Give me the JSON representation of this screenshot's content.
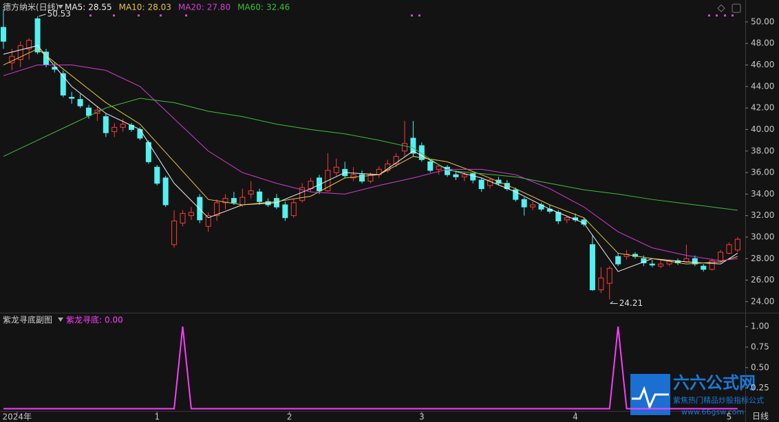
{
  "chart_data": [
    {
      "type": "candlestick",
      "title": "德方纳米(日线)",
      "candles": [
        [
          49.5,
          51.2,
          47.5,
          48.2
        ],
        [
          46.2,
          47.5,
          45.5,
          46.8
        ],
        [
          46.5,
          48.2,
          45.8,
          47.8
        ],
        [
          47.5,
          48.5,
          46.5,
          48.3
        ],
        [
          50.3,
          50.53,
          47,
          47.2
        ],
        [
          47.2,
          47.5,
          45.8,
          46
        ],
        [
          45.8,
          46.2,
          45.3,
          45.6
        ],
        [
          45.2,
          45.5,
          43,
          43.2
        ],
        [
          43,
          43.5,
          42.4,
          42.9
        ],
        [
          42.8,
          43.3,
          42,
          42.2
        ],
        [
          42,
          42.3,
          41,
          41.3
        ],
        [
          41.5,
          42.2,
          40.8,
          41.8
        ],
        [
          41.2,
          41.5,
          39.3,
          39.7
        ],
        [
          39.8,
          40.6,
          39.3,
          40.2
        ],
        [
          40.2,
          41,
          39.8,
          40.5
        ],
        [
          40.4,
          40.6,
          39.8,
          40
        ],
        [
          40,
          40.2,
          39,
          39.2
        ],
        [
          38.8,
          39,
          36.8,
          37
        ],
        [
          36.5,
          36.7,
          34.8,
          35
        ],
        [
          35.5,
          35.7,
          32.8,
          33
        ],
        [
          29.3,
          32.5,
          29,
          31.5
        ],
        [
          31.3,
          32.5,
          31,
          32.2
        ],
        [
          32,
          32.8,
          31.6,
          32.3
        ],
        [
          33.7,
          34,
          31.3,
          31.6
        ],
        [
          31,
          32.3,
          30.5,
          32
        ],
        [
          32,
          33.5,
          31.5,
          33.2
        ],
        [
          33.2,
          34,
          32.6,
          33.6
        ],
        [
          33.6,
          34.2,
          33,
          33.2
        ],
        [
          33,
          34.5,
          32.8,
          33.7
        ],
        [
          34,
          35.2,
          33.6,
          34.3
        ],
        [
          34.2,
          34.5,
          33,
          33.3
        ],
        [
          33.3,
          33.6,
          32.8,
          33
        ],
        [
          33.6,
          34,
          32.6,
          32.8
        ],
        [
          33,
          33.3,
          31.5,
          31.8
        ],
        [
          32,
          33.5,
          31.8,
          33.2
        ],
        [
          33.4,
          35,
          33.2,
          34.6
        ],
        [
          34.5,
          35.5,
          34.2,
          35.2
        ],
        [
          35.5,
          35.8,
          34,
          34.3
        ],
        [
          34.3,
          37.8,
          34.2,
          36.2
        ],
        [
          36,
          37.3,
          35.7,
          36.5
        ],
        [
          36.3,
          37,
          35.5,
          35.7
        ],
        [
          35.5,
          36.5,
          35.2,
          35.8
        ],
        [
          35.8,
          36.2,
          35,
          35.2
        ],
        [
          35.2,
          36,
          35,
          35.8
        ],
        [
          35.8,
          36.6,
          35.5,
          36.3
        ],
        [
          36.2,
          37.2,
          36,
          36.8
        ],
        [
          36.8,
          37.8,
          36.5,
          37.5
        ],
        [
          38,
          40.8,
          37.5,
          38.7
        ],
        [
          39.2,
          40.8,
          37.5,
          37.8
        ],
        [
          38.5,
          38.8,
          37,
          37.2
        ],
        [
          37,
          37.2,
          36,
          36.2
        ],
        [
          36.3,
          36.8,
          35.8,
          36.6
        ],
        [
          36.5,
          36.7,
          35.6,
          35.8
        ],
        [
          35.8,
          36.2,
          35.3,
          35.6
        ],
        [
          35.6,
          36,
          35.2,
          35.8
        ],
        [
          35.9,
          36,
          35,
          35.3
        ],
        [
          35.3,
          35.5,
          34.2,
          34.5
        ],
        [
          34.8,
          35.5,
          34.5,
          35.3
        ],
        [
          35.3,
          35.6,
          34.8,
          35
        ],
        [
          35,
          35.3,
          34.3,
          34.5
        ],
        [
          34.4,
          34.6,
          33.3,
          33.5
        ],
        [
          33.5,
          33.7,
          32,
          32.8
        ],
        [
          32.8,
          33.3,
          32.5,
          33
        ],
        [
          33,
          33.2,
          32.4,
          32.6
        ],
        [
          32.6,
          33,
          32.2,
          32.4
        ],
        [
          32.3,
          32.5,
          31.2,
          31.5
        ],
        [
          31.6,
          32,
          31.3,
          31.8
        ],
        [
          31.8,
          32.2,
          31.4,
          31.6
        ],
        [
          31.6,
          31.8,
          31,
          31.2
        ],
        [
          29.3,
          30.2,
          25,
          25.1
        ],
        [
          25.1,
          27.2,
          24.8,
          26.2
        ],
        [
          25.7,
          27.3,
          24.21,
          27.1
        ],
        [
          28.2,
          28.5,
          27.3,
          27.5
        ],
        [
          28.2,
          28.8,
          27.9,
          28.4
        ],
        [
          28.4,
          28.6,
          28,
          28.2
        ],
        [
          28,
          28.3,
          27.3,
          27.6
        ],
        [
          27.5,
          27.9,
          27.2,
          27.4
        ],
        [
          27.3,
          27.8,
          27.1,
          27.5
        ],
        [
          27.5,
          27.9,
          27.3,
          27.8
        ],
        [
          27.8,
          28,
          27.4,
          27.6
        ],
        [
          27.7,
          29.3,
          27.6,
          28
        ],
        [
          28,
          28.3,
          27.3,
          27.5
        ],
        [
          27.3,
          27.5,
          26.8,
          27
        ],
        [
          27,
          28,
          26.9,
          27.8
        ],
        [
          27.8,
          28.8,
          27.6,
          28.6
        ],
        [
          28.5,
          29.5,
          28.4,
          29.3
        ],
        [
          28.8,
          30,
          28.6,
          29.8
        ]
      ],
      "up_color": "#ff3b3b",
      "down_color": "#54f0f0",
      "ma_x": [
        0,
        4,
        8,
        12,
        16,
        20,
        24,
        28,
        32,
        36,
        40,
        44,
        48,
        52,
        56,
        60,
        64,
        68,
        72,
        76,
        80,
        84,
        86
      ],
      "series": [
        {
          "name": "MA5:",
          "current": 28.55,
          "color": "#f0f0f0",
          "values": [
            47,
            47.8,
            44,
            41.5,
            40,
            35,
            31.8,
            33,
            33.2,
            34.5,
            36,
            35.8,
            38,
            36.3,
            35.5,
            34.2,
            32.6,
            31.3,
            26.8,
            28,
            27.7,
            27.5,
            28.5
          ]
        },
        {
          "name": "MA10:",
          "current": 28.03,
          "color": "#e8c84a",
          "values": [
            46,
            47.5,
            45,
            42.5,
            40.5,
            37,
            33.5,
            33,
            33.3,
            33.8,
            35.5,
            35.8,
            37.5,
            37,
            35.8,
            34.5,
            33,
            31.8,
            28.5,
            28,
            27.5,
            27.7,
            28.2
          ]
        },
        {
          "name": "MA20:",
          "current": 27.8,
          "current_label": "27.80",
          "color": "#d23fd2",
          "values": [
            45,
            46,
            46,
            45.5,
            44,
            41,
            38,
            36,
            35,
            34.2,
            34,
            34.8,
            35.5,
            36.3,
            36.3,
            35.8,
            34.5,
            32.8,
            30.5,
            29,
            28.3,
            27.8,
            28
          ]
        },
        {
          "name": "MA60:",
          "current": 32.46,
          "color": "#3fbf3f",
          "values": [
            37.5,
            39,
            40.5,
            42,
            42.9,
            42.5,
            41.7,
            41.2,
            40.5,
            40,
            39.6,
            39,
            38.3,
            36.2,
            35.9,
            35.6,
            35,
            34.4,
            34,
            33.5,
            33.1,
            32.7,
            32.5
          ]
        }
      ],
      "high_index": 4,
      "low_index": 71,
      "xlim": [
        -0.4,
        86.9
      ],
      "ylim": [
        22.97,
        52.04
      ],
      "yticks": [
        {
          "value": 24,
          "label": "24.00"
        },
        {
          "value": 26,
          "label": "26.00"
        },
        {
          "value": 28,
          "label": "28.00"
        },
        {
          "value": 30,
          "label": "30.00"
        },
        {
          "value": 32,
          "label": "32.00"
        },
        {
          "value": 34,
          "label": "34.00"
        },
        {
          "value": 36,
          "label": "36.00"
        },
        {
          "value": 38,
          "label": "38.00"
        },
        {
          "value": 40,
          "label": "40.00"
        },
        {
          "value": 42,
          "label": "42.00"
        },
        {
          "value": 44,
          "label": "44.00"
        },
        {
          "value": 46,
          "label": "46.00"
        },
        {
          "value": 48,
          "label": "48.00"
        },
        {
          "value": 50,
          "label": "50.00"
        }
      ],
      "xticks": [
        {
          "value": 1.6,
          "label": "2024年"
        },
        {
          "value": 18,
          "label": "1"
        },
        {
          "value": 33.5,
          "label": "2"
        },
        {
          "value": 49,
          "label": "3"
        },
        {
          "value": 67,
          "label": "4"
        },
        {
          "value": 85,
          "label": "5"
        }
      ],
      "period": "日线"
    },
    {
      "type": "line",
      "title": "紫龙寻底副图",
      "series": [
        {
          "name": "紫龙寻底:",
          "current": 0,
          "current_label": "0.00",
          "color": "#ff3cff",
          "values": [
            0,
            0,
            0,
            0,
            0,
            0,
            0,
            0,
            0,
            0,
            0,
            0,
            0,
            0,
            0,
            0,
            0,
            0,
            0,
            0,
            0,
            1,
            0,
            0,
            0,
            0,
            0,
            0,
            0,
            0,
            0,
            0,
            0,
            0,
            0,
            0,
            0,
            0,
            0,
            0,
            0,
            0,
            0,
            0,
            0,
            0,
            0,
            0,
            0,
            0,
            0,
            0,
            0,
            0,
            0,
            0,
            0,
            0,
            0,
            0,
            0,
            0,
            0,
            0,
            0,
            0,
            0,
            0,
            0,
            0,
            0,
            0,
            1,
            0,
            0,
            0,
            0,
            0,
            0,
            0,
            0,
            0,
            0,
            0,
            0,
            0,
            0
          ]
        }
      ],
      "ylim": [
        -0.02,
        1.16
      ],
      "yticks": [
        0.25,
        {
          "value": 0.5,
          "label": "0.50"
        },
        0.75,
        {
          "value": 1,
          "label": "1.00"
        }
      ]
    }
  ],
  "watermark": {
    "logo": "六六公式网",
    "tagline": "紫焦热门精品炒股指标公式",
    "url": "www.66gsw.com"
  }
}
